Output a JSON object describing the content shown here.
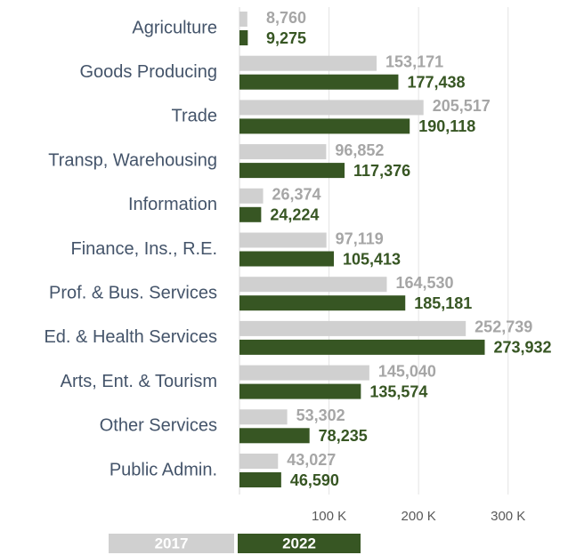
{
  "chart_data": {
    "type": "bar",
    "orientation": "horizontal",
    "categories": [
      "Agriculture",
      "Goods Producing",
      "Trade",
      "Transp, Warehousing",
      "Information",
      "Finance, Ins., R.E.",
      "Prof. & Bus. Services",
      "Ed. & Health Services",
      "Arts, Ent. & Tourism",
      "Other Services",
      "Public Admin."
    ],
    "series": [
      {
        "name": "2017",
        "color": "#d0d0d0",
        "label_color": "#a6a6a6",
        "values": [
          8760,
          153171,
          205517,
          96852,
          26374,
          97119,
          164530,
          252739,
          145040,
          53302,
          43027
        ],
        "value_labels": [
          "8,760",
          "153,171",
          "205,517",
          "96,852",
          "26,374",
          "97,119",
          "164,530",
          "252,739",
          "145,040",
          "53,302",
          "43,027"
        ]
      },
      {
        "name": "2022",
        "color": "#375623",
        "label_color": "#375623",
        "values": [
          9275,
          177438,
          190118,
          117376,
          24224,
          105413,
          185181,
          273932,
          135574,
          78235,
          46590
        ],
        "value_labels": [
          "9,275",
          "177,438",
          "190,118",
          "117,376",
          "24,224",
          "105,413",
          "185,181",
          "273,932",
          "135,574",
          "78,235",
          "46,590"
        ]
      }
    ],
    "xlim": [
      0,
      350000
    ],
    "xticks": [
      {
        "value": 100000,
        "label": "100 K"
      },
      {
        "value": 200000,
        "label": "200 K"
      },
      {
        "value": 300000,
        "label": "300 K"
      }
    ],
    "grid": true,
    "legend": "bottom"
  }
}
